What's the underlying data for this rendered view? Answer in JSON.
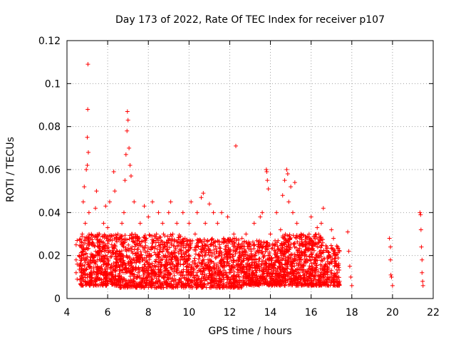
{
  "chart_data": {
    "type": "scatter",
    "title": "Day 173 of 2022, Rate Of TEC Index for receiver p107",
    "xlabel": "GPS time / hours",
    "ylabel": "ROTI / TECUs",
    "xlim": [
      4,
      22
    ],
    "ylim": [
      0,
      0.12
    ],
    "x_ticks": [
      4,
      6,
      8,
      10,
      12,
      14,
      16,
      18,
      20,
      22
    ],
    "y_ticks": [
      0,
      0.02,
      0.04,
      0.06,
      0.08,
      0.1,
      0.12
    ],
    "x_tick_labels": [
      "4",
      "6",
      "8",
      "10",
      "12",
      "14",
      "16",
      "18",
      "20",
      "22"
    ],
    "y_tick_labels": [
      "0",
      "0.02",
      "0.04",
      "0.06",
      "0.08",
      "0.1",
      "0.12"
    ],
    "grid": true,
    "marker": "+",
    "color": "#ff0000",
    "series": [
      {
        "points": [
          [
            4.45,
            0.025
          ],
          [
            4.45,
            0.018
          ],
          [
            4.45,
            0.012
          ],
          [
            4.5,
            0.009
          ],
          [
            4.5,
            0.016
          ],
          [
            4.5,
            0.027
          ],
          [
            4.7,
            0.012
          ],
          [
            4.72,
            0.018
          ],
          [
            4.75,
            0.03
          ],
          [
            4.8,
            0.045
          ],
          [
            4.85,
            0.052
          ],
          [
            4.9,
            0.035
          ],
          [
            4.95,
            0.06
          ],
          [
            5.0,
            0.062
          ],
          [
            5.0,
            0.075
          ],
          [
            5.02,
            0.088
          ],
          [
            5.03,
            0.109
          ],
          [
            5.05,
            0.068
          ],
          [
            5.08,
            0.04
          ],
          [
            5.1,
            0.025
          ],
          [
            5.15,
            0.015
          ],
          [
            5.2,
            0.03
          ],
          [
            5.3,
            0.02
          ],
          [
            5.4,
            0.042
          ],
          [
            5.45,
            0.05
          ],
          [
            5.5,
            0.018
          ],
          [
            5.6,
            0.03
          ],
          [
            5.7,
            0.012
          ],
          [
            5.8,
            0.035
          ],
          [
            5.9,
            0.043
          ],
          [
            6.0,
            0.033
          ],
          [
            6.1,
            0.045
          ],
          [
            6.2,
            0.025
          ],
          [
            6.3,
            0.059
          ],
          [
            6.35,
            0.05
          ],
          [
            6.4,
            0.015
          ],
          [
            6.5,
            0.03
          ],
          [
            6.6,
            0.01
          ],
          [
            6.7,
            0.035
          ],
          [
            6.8,
            0.04
          ],
          [
            6.85,
            0.055
          ],
          [
            6.9,
            0.067
          ],
          [
            6.95,
            0.078
          ],
          [
            6.97,
            0.087
          ],
          [
            7.0,
            0.083
          ],
          [
            7.05,
            0.07
          ],
          [
            7.1,
            0.062
          ],
          [
            7.15,
            0.057
          ],
          [
            7.2,
            0.03
          ],
          [
            7.3,
            0.045
          ],
          [
            7.4,
            0.02
          ],
          [
            7.5,
            0.012
          ],
          [
            7.6,
            0.035
          ],
          [
            7.7,
            0.018
          ],
          [
            7.8,
            0.043
          ],
          [
            7.9,
            0.028
          ],
          [
            8.0,
            0.038
          ],
          [
            8.1,
            0.02
          ],
          [
            8.2,
            0.045
          ],
          [
            8.3,
            0.015
          ],
          [
            8.4,
            0.03
          ],
          [
            8.5,
            0.04
          ],
          [
            8.6,
            0.012
          ],
          [
            8.7,
            0.035
          ],
          [
            8.8,
            0.025
          ],
          [
            8.9,
            0.018
          ],
          [
            9.0,
            0.04
          ],
          [
            9.1,
            0.045
          ],
          [
            9.2,
            0.03
          ],
          [
            9.3,
            0.015
          ],
          [
            9.4,
            0.035
          ],
          [
            9.5,
            0.022
          ],
          [
            9.6,
            0.012
          ],
          [
            9.7,
            0.04
          ],
          [
            9.8,
            0.028
          ],
          [
            9.9,
            0.018
          ],
          [
            10.0,
            0.035
          ],
          [
            10.1,
            0.045
          ],
          [
            10.2,
            0.012
          ],
          [
            10.3,
            0.03
          ],
          [
            10.4,
            0.04
          ],
          [
            10.5,
            0.02
          ],
          [
            10.6,
            0.047
          ],
          [
            10.7,
            0.049
          ],
          [
            10.8,
            0.035
          ],
          [
            10.9,
            0.015
          ],
          [
            11.0,
            0.044
          ],
          [
            11.1,
            0.025
          ],
          [
            11.2,
            0.04
          ],
          [
            11.3,
            0.012
          ],
          [
            11.4,
            0.035
          ],
          [
            11.5,
            0.02
          ],
          [
            11.6,
            0.04
          ],
          [
            11.7,
            0.028
          ],
          [
            11.8,
            0.012
          ],
          [
            11.9,
            0.038
          ],
          [
            12.0,
            0.022
          ],
          [
            12.1,
            0.015
          ],
          [
            12.2,
            0.03
          ],
          [
            12.3,
            0.071
          ],
          [
            12.4,
            0.012
          ],
          [
            12.5,
            0.02
          ],
          [
            12.6,
            0.028
          ],
          [
            12.7,
            0.015
          ],
          [
            12.8,
            0.03
          ],
          [
            12.9,
            0.01
          ],
          [
            13.0,
            0.025
          ],
          [
            13.1,
            0.018
          ],
          [
            13.2,
            0.035
          ],
          [
            13.3,
            0.012
          ],
          [
            13.4,
            0.022
          ],
          [
            13.5,
            0.038
          ],
          [
            13.6,
            0.04
          ],
          [
            13.7,
            0.02
          ],
          [
            13.8,
            0.06
          ],
          [
            13.82,
            0.059
          ],
          [
            13.85,
            0.055
          ],
          [
            13.9,
            0.051
          ],
          [
            14.0,
            0.03
          ],
          [
            14.1,
            0.015
          ],
          [
            14.2,
            0.025
          ],
          [
            14.3,
            0.04
          ],
          [
            14.4,
            0.018
          ],
          [
            14.5,
            0.032
          ],
          [
            14.6,
            0.048
          ],
          [
            14.7,
            0.055
          ],
          [
            14.8,
            0.06
          ],
          [
            14.85,
            0.058
          ],
          [
            14.9,
            0.045
          ],
          [
            15.0,
            0.052
          ],
          [
            15.1,
            0.04
          ],
          [
            15.2,
            0.054
          ],
          [
            15.3,
            0.035
          ],
          [
            15.4,
            0.02
          ],
          [
            15.5,
            0.03
          ],
          [
            15.6,
            0.012
          ],
          [
            15.7,
            0.025
          ],
          [
            15.8,
            0.018
          ],
          [
            15.9,
            0.03
          ],
          [
            16.0,
            0.038
          ],
          [
            16.1,
            0.025
          ],
          [
            16.2,
            0.012
          ],
          [
            16.3,
            0.033
          ],
          [
            16.4,
            0.02
          ],
          [
            16.5,
            0.035
          ],
          [
            16.6,
            0.042
          ],
          [
            16.7,
            0.015
          ],
          [
            16.8,
            0.01
          ],
          [
            17.0,
            0.032
          ],
          [
            17.1,
            0.028
          ],
          [
            17.2,
            0.02
          ],
          [
            17.3,
            0.012
          ],
          [
            17.4,
            0.008
          ],
          [
            17.8,
            0.031
          ],
          [
            17.85,
            0.022
          ],
          [
            17.9,
            0.015
          ],
          [
            17.95,
            0.01
          ],
          [
            18.0,
            0.006
          ],
          [
            19.85,
            0.028
          ],
          [
            19.9,
            0.024
          ],
          [
            19.9,
            0.018
          ],
          [
            19.92,
            0.011
          ],
          [
            19.95,
            0.01
          ],
          [
            20.0,
            0.006
          ],
          [
            21.35,
            0.04
          ],
          [
            21.38,
            0.039
          ],
          [
            21.4,
            0.032
          ],
          [
            21.42,
            0.024
          ],
          [
            21.45,
            0.018
          ],
          [
            21.45,
            0.012
          ],
          [
            21.48,
            0.008
          ],
          [
            21.5,
            0.006
          ]
        ],
        "dense_band": [
          {
            "x_start": 4.6,
            "x_end": 6.6,
            "y_min": 0.006,
            "y_max": 0.03,
            "count": 520
          },
          {
            "x_start": 6.6,
            "x_end": 9.6,
            "y_min": 0.005,
            "y_max": 0.03,
            "count": 700
          },
          {
            "x_start": 9.6,
            "x_end": 12.6,
            "y_min": 0.005,
            "y_max": 0.028,
            "count": 700
          },
          {
            "x_start": 12.6,
            "x_end": 14.6,
            "y_min": 0.006,
            "y_max": 0.027,
            "count": 520
          },
          {
            "x_start": 14.6,
            "x_end": 16.6,
            "y_min": 0.006,
            "y_max": 0.03,
            "count": 560
          },
          {
            "x_start": 16.6,
            "x_end": 17.4,
            "y_min": 0.006,
            "y_max": 0.025,
            "count": 160
          }
        ]
      }
    ]
  }
}
